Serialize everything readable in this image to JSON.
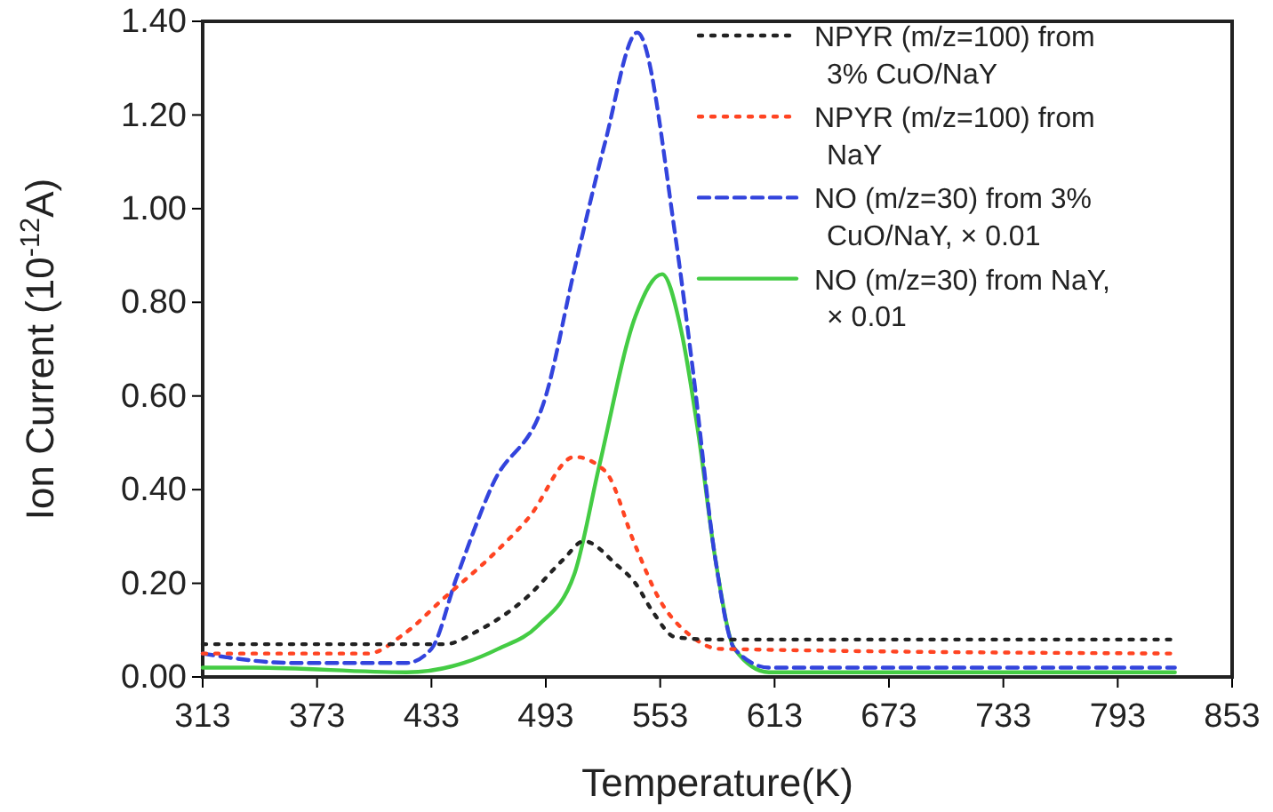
{
  "chart_data": {
    "type": "line",
    "xlabel": "Temperature(K)",
    "ylabel": "Ion Current (10$^{-12}$A)",
    "xlim": [
      313,
      853
    ],
    "xticks": [
      313,
      373,
      433,
      493,
      553,
      613,
      673,
      733,
      793,
      853
    ],
    "ylim": [
      0,
      1.4
    ],
    "yticks": [
      {
        "value": 0,
        "label": "0.00"
      },
      {
        "value": 0.2,
        "label": "0.20"
      },
      {
        "value": 0.4,
        "label": "0.40"
      },
      {
        "value": 0.6,
        "label": "0.60"
      },
      {
        "value": 0.8,
        "label": "0.80"
      },
      {
        "value": 1.0,
        "label": "1.00"
      },
      {
        "value": 1.2,
        "label": "1.20"
      },
      {
        "value": 1.4,
        "label": "1.40"
      }
    ],
    "grid": false,
    "legend": "top right",
    "marker": "none",
    "series": [
      {
        "name": "NPYR (m/z=100) from 3% CuO/NaY",
        "color": "#222222",
        "line_style": "dotted",
        "x": [
          313,
          380,
          440,
          458,
          483,
          502,
          513,
          530,
          540,
          549,
          561,
          580,
          823
        ],
        "values": [
          0.07,
          0.07,
          0.07,
          0.1,
          0.17,
          0.25,
          0.29,
          0.24,
          0.2,
          0.14,
          0.085,
          0.08,
          0.08
        ]
      },
      {
        "name": "NPYR (m/z=100) from NaY",
        "color": "#ff4422",
        "line_style": "dotted",
        "x": [
          313,
          400,
          418,
          440,
          465,
          484,
          508,
          524,
          540,
          552,
          570,
          584,
          823
        ],
        "values": [
          0.05,
          0.05,
          0.09,
          0.17,
          0.26,
          0.34,
          0.47,
          0.44,
          0.28,
          0.17,
          0.085,
          0.06,
          0.05
        ]
      },
      {
        "name": "NO (m/z=30) from 3% CuO/NaY, × 0.01",
        "color": "#3344dd",
        "line_style": "dashed",
        "x": [
          313,
          360,
          420,
          433,
          446,
          465,
          493,
          508,
          524,
          541,
          561,
          570,
          582,
          592,
          610,
          823
        ],
        "values": [
          0.05,
          0.03,
          0.03,
          0.06,
          0.21,
          0.41,
          0.6,
          0.87,
          1.14,
          1.376,
          0.94,
          0.66,
          0.25,
          0.06,
          0.02,
          0.02
        ]
      },
      {
        "name": "NO (m/z=30) from NaY, × 0.01",
        "color": "#44cc44",
        "line_style": "solid",
        "x": [
          313,
          340,
          420,
          450,
          468,
          489,
          508,
          521,
          540,
          554,
          564,
          573,
          582,
          592,
          610,
          823
        ],
        "values": [
          0.02,
          0.02,
          0.01,
          0.03,
          0.06,
          0.11,
          0.22,
          0.45,
          0.77,
          0.86,
          0.74,
          0.52,
          0.25,
          0.06,
          0.01,
          0.01
        ]
      }
    ]
  }
}
